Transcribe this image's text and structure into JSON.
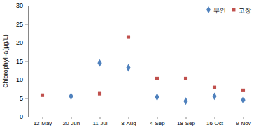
{
  "chart_data": {
    "type": "scatter",
    "y_label": "Chlorophyll-a(μg/L)",
    "categories": [
      "12-May",
      "20-Jun",
      "11-Jul",
      "8-Aug",
      "4-Sep",
      "18-Sep",
      "16-Oct",
      "9-Nov"
    ],
    "series": [
      {
        "name": "부안",
        "color": "#4f81bd",
        "marker": "diamond",
        "values": [
          null,
          5.5,
          14.5,
          13.2,
          5.3,
          4.2,
          5.5,
          4.5
        ]
      },
      {
        "name": "고창",
        "color": "#c0504d",
        "marker": "square",
        "values": [
          5.8,
          null,
          6.2,
          21.5,
          10.3,
          10.3,
          7.9,
          7.1
        ]
      }
    ],
    "ylim": [
      0,
      30
    ],
    "yticks": [
      0,
      5,
      10,
      15,
      20,
      25,
      30
    ],
    "grid": false,
    "legend": "upper right"
  }
}
